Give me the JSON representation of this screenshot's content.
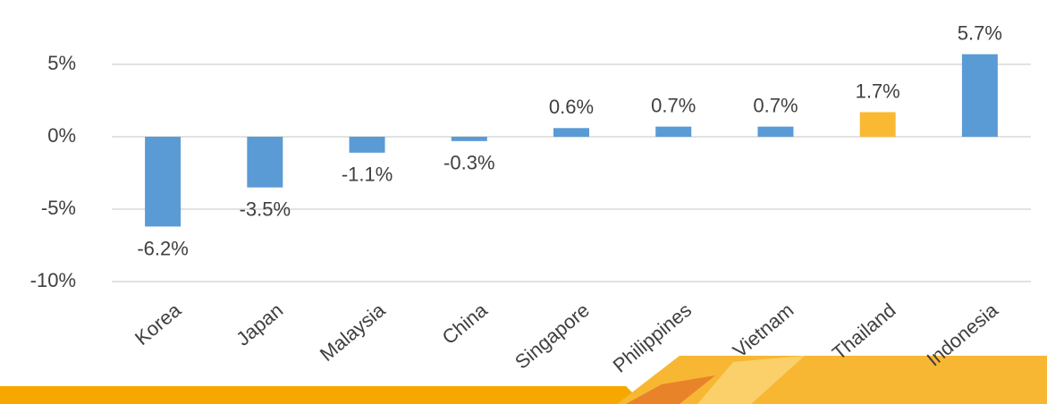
{
  "chart_data": {
    "type": "bar",
    "categories": [
      "Korea",
      "Japan",
      "Malaysia",
      "China",
      "Singapore",
      "Philippines",
      "Vietnam",
      "Thailand",
      "Indonesia"
    ],
    "values": [
      -6.2,
      -3.5,
      -1.1,
      -0.3,
      0.6,
      0.7,
      0.7,
      1.7,
      5.7
    ],
    "value_labels": [
      "-6.2%",
      "-3.5%",
      "-1.1%",
      "-0.3%",
      "0.6%",
      "0.7%",
      "0.7%",
      "1.7%",
      "5.7%"
    ],
    "colors": [
      "#5b9bd5",
      "#5b9bd5",
      "#5b9bd5",
      "#5b9bd5",
      "#5b9bd5",
      "#5b9bd5",
      "#5b9bd5",
      "#f9b932",
      "#5b9bd5"
    ],
    "ylim": [
      -10,
      8
    ],
    "yticks": [
      {
        "value": -10,
        "label": "-10%"
      },
      {
        "value": -5,
        "label": "-5%"
      },
      {
        "value": 0,
        "label": "0%"
      },
      {
        "value": 5,
        "label": "5%"
      }
    ],
    "grid": true
  }
}
